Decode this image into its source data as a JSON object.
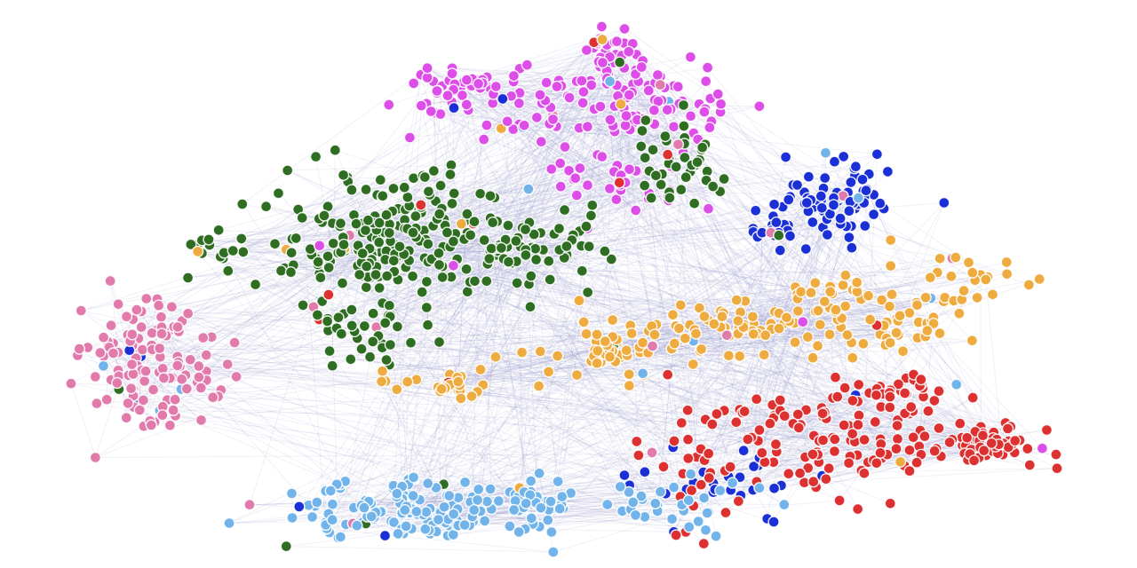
{
  "graph": {
    "edge_color": "#8f90c8",
    "clusters": [
      {
        "id": "magenta-cluster",
        "color": "#dd4ee8",
        "node_count": 230
      },
      {
        "id": "green-cluster",
        "color": "#2f6e22",
        "node_count": 360
      },
      {
        "id": "pink-cluster",
        "color": "#e17bab",
        "node_count": 130
      },
      {
        "id": "navy-cluster",
        "color": "#1a2fd6",
        "node_count": 120
      },
      {
        "id": "orange-cluster",
        "color": "#eeab3f",
        "node_count": 230
      },
      {
        "id": "red-cluster",
        "color": "#dd3030",
        "node_count": 230
      },
      {
        "id": "lightblue-cluster",
        "color": "#72b4ea",
        "node_count": 200
      }
    ]
  }
}
